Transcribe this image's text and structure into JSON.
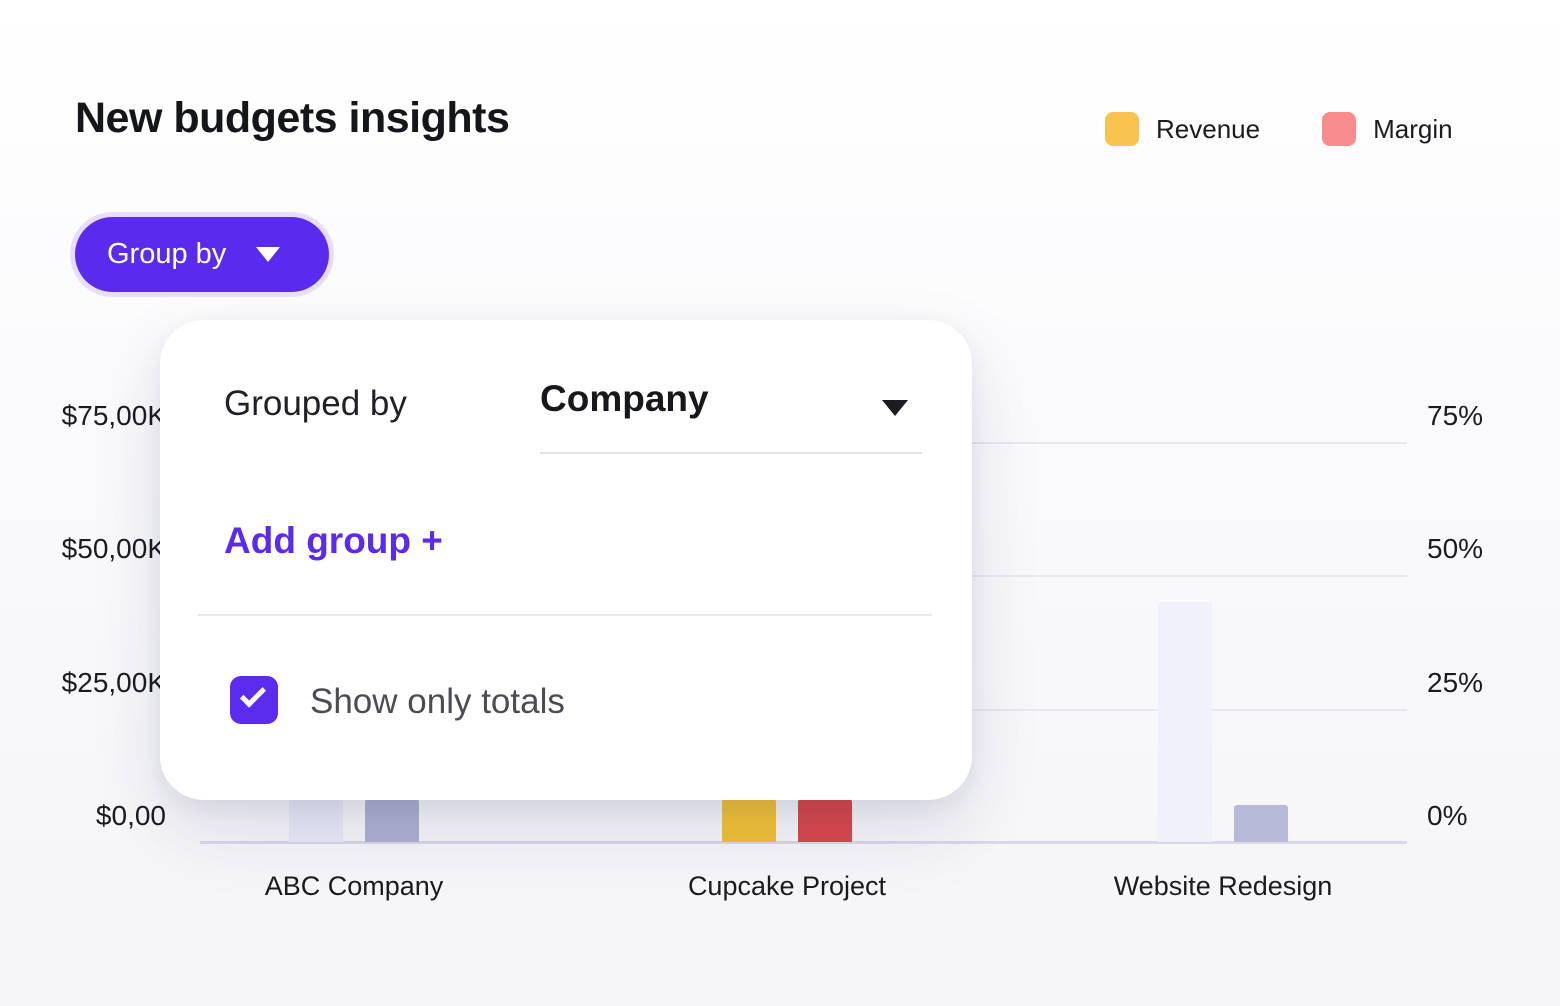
{
  "page": {
    "title": "New budgets insights"
  },
  "legend": [
    {
      "label": "Revenue",
      "color": "#f9c44e"
    },
    {
      "label": "Margin",
      "color": "#f98c8c"
    }
  ],
  "toolbar": {
    "group_by_button": "Group by"
  },
  "popover": {
    "grouped_by_label": "Grouped by",
    "group_select": {
      "value": "Company"
    },
    "add_group_link": "Add group +",
    "show_only_totals": {
      "label": "Show only totals",
      "checked": true
    }
  },
  "chart_data": {
    "type": "bar",
    "title": "New budgets insights",
    "categories": [
      "ABC Company",
      "Cupcake Project",
      "Website Redesign"
    ],
    "left_axis": {
      "ticks": [
        "$75,00K",
        "$50,00K",
        "$25,00K",
        "$0,00"
      ],
      "max": 75,
      "unit": "$K"
    },
    "right_axis": {
      "ticks": [
        "75%",
        "50%",
        "25%",
        "0%"
      ],
      "max": 75,
      "unit": "%"
    },
    "series": [
      {
        "name": "Revenue",
        "values": [
          8,
          8,
          45
        ],
        "bar_colors": [
          "#e9ebf8",
          "#f3c238",
          "#f0f1fa"
        ]
      },
      {
        "name": "Margin",
        "values": [
          8,
          8,
          7
        ],
        "bar_colors": [
          "#afb2d2",
          "#d9494c",
          "#b7bad8"
        ]
      }
    ],
    "grid": true,
    "legend_position": "top-right"
  },
  "colors": {
    "accent": "#5a2bef",
    "grid_line": "#e7e8f3",
    "axis_line": "#d8daeb"
  }
}
